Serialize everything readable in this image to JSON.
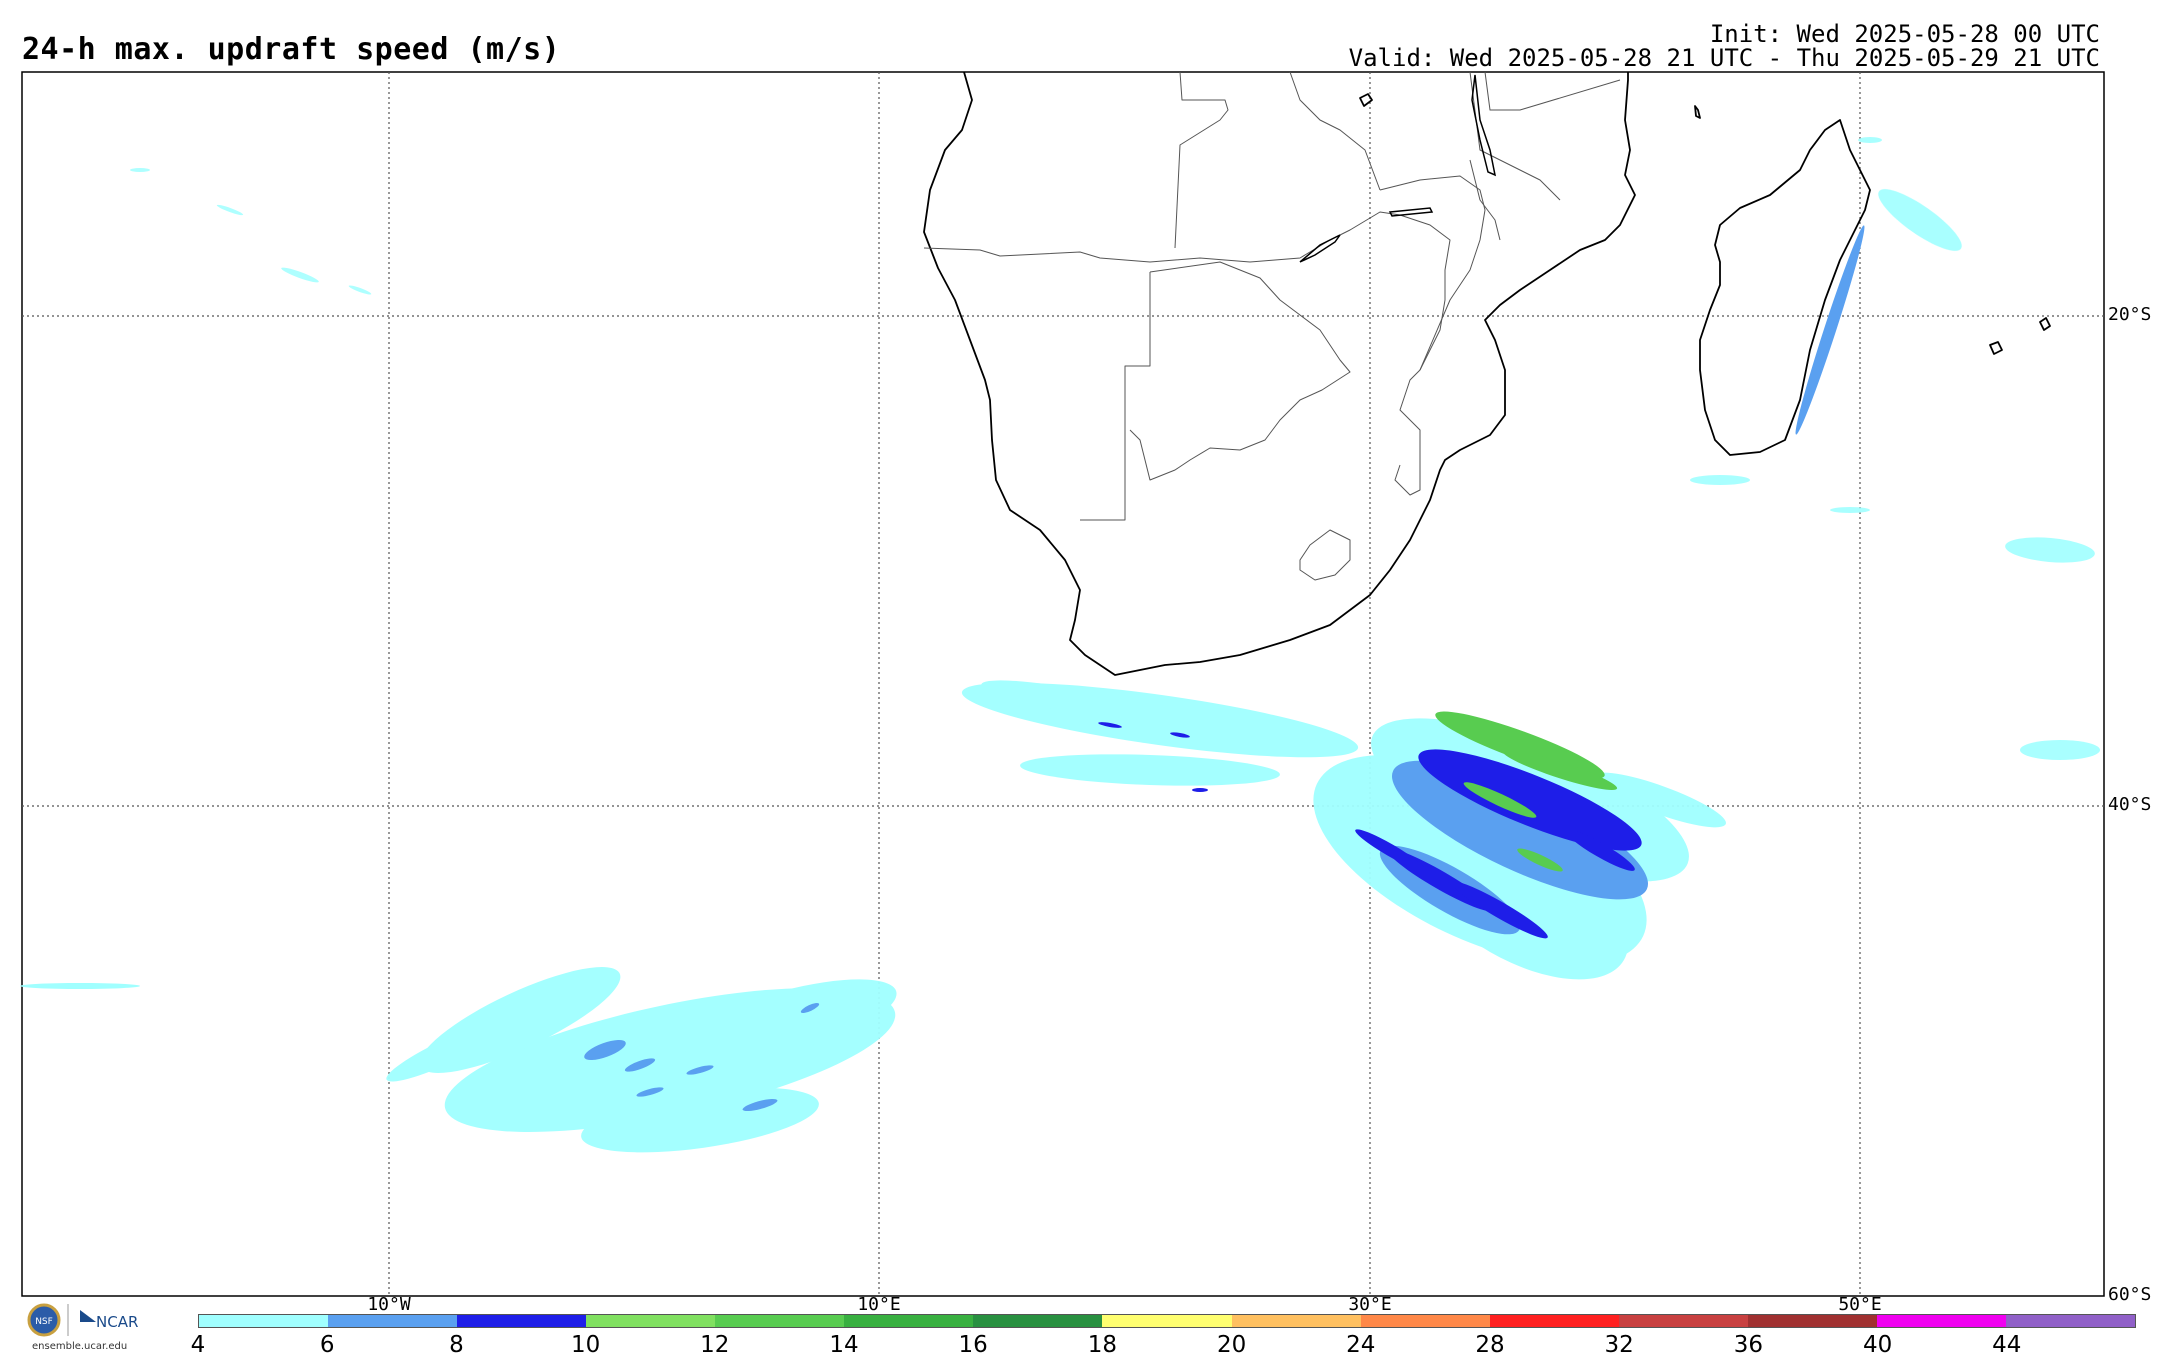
{
  "title": "24-h max. updraft speed (m/s)",
  "init_text": "Init: Wed 2025-05-28 00 UTC",
  "valid_text": "Valid: Wed 2025-05-28 21 UTC - Thu 2025-05-29 21 UTC",
  "lat_labels": [
    "20°S",
    "40°S",
    "60°S"
  ],
  "lon_labels": [
    "10°W",
    "10°E",
    "30°E",
    "50°E"
  ],
  "colorbar": {
    "ticks": [
      "4",
      "6",
      "8",
      "10",
      "12",
      "14",
      "16",
      "18",
      "20",
      "24",
      "28",
      "32",
      "36",
      "40",
      "44"
    ],
    "colors": [
      "#a0ffff",
      "#5aa0f0",
      "#1e1ee8",
      "#80e060",
      "#58cc50",
      "#38b040",
      "#289040",
      "#ffff70",
      "#ffc060",
      "#ff8848",
      "#ff2020",
      "#c84040",
      "#a03030",
      "#f000f0",
      "#9060c8"
    ]
  },
  "logo": {
    "org": "NCAR",
    "url": "ensemble.ucar.edu"
  }
}
